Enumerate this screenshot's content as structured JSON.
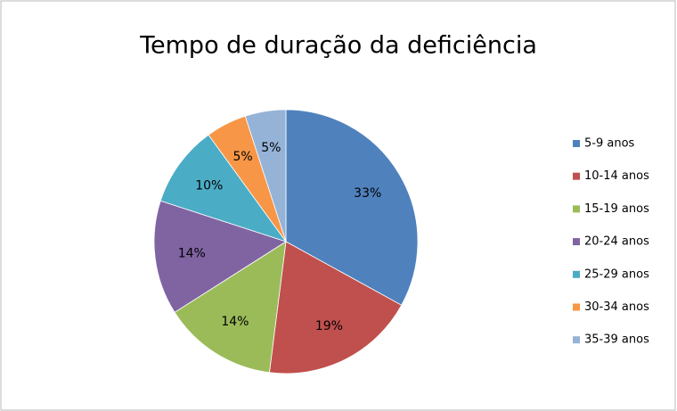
{
  "chart_data": {
    "type": "pie",
    "title": "Tempo de duração da deficiência",
    "categories": [
      "5-9 anos",
      "10-14 anos",
      "15-19 anos",
      "20-24 anos",
      "25-29 anos",
      "30-34 anos",
      "35-39 anos"
    ],
    "values": [
      33,
      19,
      14,
      14,
      10,
      5,
      5
    ],
    "value_labels": [
      "33%",
      "19%",
      "14%",
      "14%",
      "10%",
      "5%",
      "5%"
    ],
    "colors": [
      "#4f81bd",
      "#c0504d",
      "#9bbb59",
      "#8064a2",
      "#4bacc6",
      "#f79646",
      "#95b3d7"
    ],
    "legend": "right"
  }
}
